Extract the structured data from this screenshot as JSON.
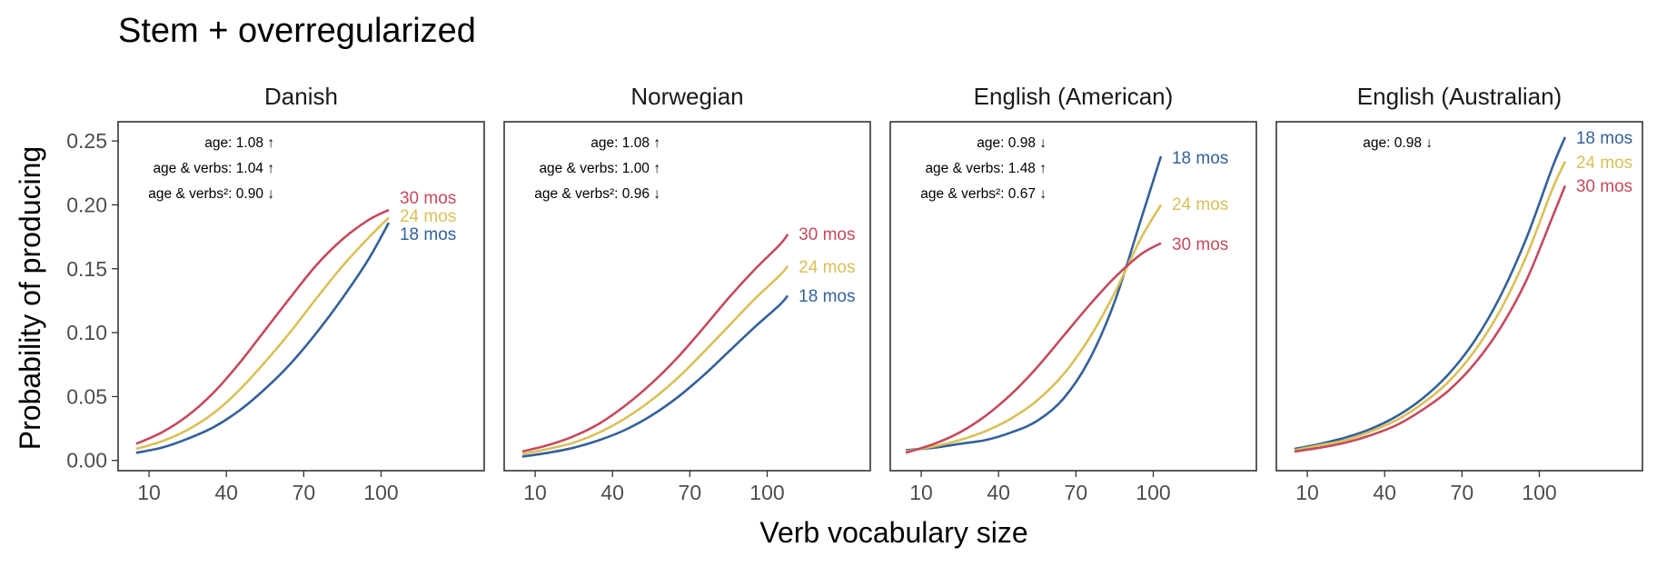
{
  "title": "Stem + overregularized",
  "chart_data": [
    {
      "type": "line",
      "panel": "Danish",
      "xlim": [
        -2,
        140
      ],
      "ylim": [
        -0.008,
        0.265
      ],
      "x_ticks": [
        10,
        40,
        70,
        100
      ],
      "y_ticks": [
        0.0,
        0.05,
        0.1,
        0.15,
        0.2,
        0.25
      ],
      "annotations": [
        "age: 1.08 ↑",
        "age & verbs: 1.04 ↑",
        "age & verbs²: 0.90 ↓"
      ],
      "series": [
        {
          "name": "30 mos",
          "x": [
            5,
            15,
            25,
            35,
            45,
            55,
            65,
            75,
            85,
            95,
            103
          ],
          "y": [
            0.013,
            0.022,
            0.035,
            0.053,
            0.076,
            0.102,
            0.128,
            0.153,
            0.173,
            0.188,
            0.196
          ]
        },
        {
          "name": "24 mos",
          "x": [
            5,
            15,
            25,
            35,
            45,
            55,
            65,
            75,
            85,
            95,
            103
          ],
          "y": [
            0.009,
            0.015,
            0.024,
            0.037,
            0.055,
            0.077,
            0.101,
            0.127,
            0.152,
            0.174,
            0.19
          ]
        },
        {
          "name": "18 mos",
          "x": [
            5,
            15,
            25,
            35,
            45,
            55,
            65,
            75,
            85,
            95,
            103
          ],
          "y": [
            0.006,
            0.01,
            0.017,
            0.026,
            0.039,
            0.056,
            0.076,
            0.1,
            0.127,
            0.157,
            0.186
          ]
        }
      ]
    },
    {
      "type": "line",
      "panel": "Norwegian",
      "xlim": [
        -2,
        140
      ],
      "ylim": [
        -0.008,
        0.265
      ],
      "x_ticks": [
        10,
        40,
        70,
        100
      ],
      "y_ticks": [
        0.0,
        0.05,
        0.1,
        0.15,
        0.2,
        0.25
      ],
      "annotations": [
        "age: 1.08 ↑",
        "age & verbs: 1.00 ↑",
        "age & verbs²: 0.96 ↓"
      ],
      "series": [
        {
          "name": "30 mos",
          "x": [
            5,
            15,
            25,
            35,
            45,
            55,
            65,
            75,
            85,
            95,
            105,
            108
          ],
          "y": [
            0.007,
            0.012,
            0.019,
            0.029,
            0.043,
            0.06,
            0.08,
            0.103,
            0.127,
            0.149,
            0.169,
            0.177
          ]
        },
        {
          "name": "24 mos",
          "x": [
            5,
            15,
            25,
            35,
            45,
            55,
            65,
            75,
            85,
            95,
            105,
            108
          ],
          "y": [
            0.005,
            0.009,
            0.014,
            0.022,
            0.033,
            0.047,
            0.064,
            0.084,
            0.105,
            0.126,
            0.145,
            0.152
          ]
        },
        {
          "name": "18 mos",
          "x": [
            5,
            15,
            25,
            35,
            45,
            55,
            65,
            75,
            85,
            95,
            105,
            108
          ],
          "y": [
            0.003,
            0.006,
            0.01,
            0.016,
            0.024,
            0.035,
            0.049,
            0.066,
            0.085,
            0.104,
            0.122,
            0.129
          ]
        }
      ]
    },
    {
      "type": "line",
      "panel": "English (American)",
      "xlim": [
        -2,
        140
      ],
      "ylim": [
        -0.008,
        0.265
      ],
      "x_ticks": [
        10,
        40,
        70,
        100
      ],
      "y_ticks": [
        0.0,
        0.05,
        0.1,
        0.15,
        0.2,
        0.25
      ],
      "annotations": [
        "age: 0.98 ↓",
        "age & verbs: 1.48 ↑",
        "age & verbs²: 0.67 ↓"
      ],
      "series": [
        {
          "name": "18 mos",
          "x": [
            4,
            15,
            25,
            35,
            45,
            55,
            65,
            75,
            85,
            95,
            103
          ],
          "y": [
            0.008,
            0.01,
            0.013,
            0.016,
            0.022,
            0.031,
            0.048,
            0.078,
            0.124,
            0.187,
            0.238
          ]
        },
        {
          "name": "24 mos",
          "x": [
            4,
            15,
            25,
            35,
            45,
            55,
            65,
            75,
            85,
            95,
            103
          ],
          "y": [
            0.007,
            0.011,
            0.016,
            0.023,
            0.033,
            0.047,
            0.067,
            0.095,
            0.131,
            0.173,
            0.2
          ]
        },
        {
          "name": "30 mos",
          "x": [
            4,
            15,
            25,
            35,
            45,
            55,
            65,
            75,
            85,
            95,
            103
          ],
          "y": [
            0.006,
            0.013,
            0.022,
            0.035,
            0.052,
            0.073,
            0.097,
            0.121,
            0.143,
            0.161,
            0.17
          ]
        }
      ]
    },
    {
      "type": "line",
      "panel": "English (Australian)",
      "xlim": [
        -2,
        140
      ],
      "ylim": [
        -0.008,
        0.265
      ],
      "x_ticks": [
        10,
        40,
        70,
        100
      ],
      "y_ticks": [
        0.0,
        0.05,
        0.1,
        0.15,
        0.2,
        0.25
      ],
      "annotations": [
        "age: 0.98 ↓"
      ],
      "series": [
        {
          "name": "18 mos",
          "x": [
            5,
            15,
            25,
            35,
            45,
            55,
            65,
            75,
            85,
            95,
            105,
            110
          ],
          "y": [
            0.009,
            0.013,
            0.018,
            0.025,
            0.035,
            0.049,
            0.068,
            0.094,
            0.129,
            0.174,
            0.229,
            0.253
          ]
        },
        {
          "name": "24 mos",
          "x": [
            5,
            15,
            25,
            35,
            45,
            55,
            65,
            75,
            85,
            95,
            105,
            110
          ],
          "y": [
            0.008,
            0.012,
            0.016,
            0.023,
            0.032,
            0.045,
            0.062,
            0.086,
            0.118,
            0.16,
            0.212,
            0.234
          ]
        },
        {
          "name": "30 mos",
          "x": [
            5,
            15,
            25,
            35,
            45,
            55,
            65,
            75,
            85,
            95,
            105,
            110
          ],
          "y": [
            0.007,
            0.01,
            0.014,
            0.02,
            0.028,
            0.04,
            0.055,
            0.076,
            0.104,
            0.141,
            0.19,
            0.215
          ]
        }
      ]
    }
  ],
  "axes": {
    "xlabel": "Verb vocabulary size",
    "ylabel": "Probability of producing",
    "y_tick_labels": [
      "0.00",
      "0.05",
      "0.10",
      "0.15",
      "0.20",
      "0.25"
    ]
  },
  "colors": {
    "18 mos": "#336199",
    "24 mos": "#d9c058",
    "30 mos": "#c44a5e"
  }
}
